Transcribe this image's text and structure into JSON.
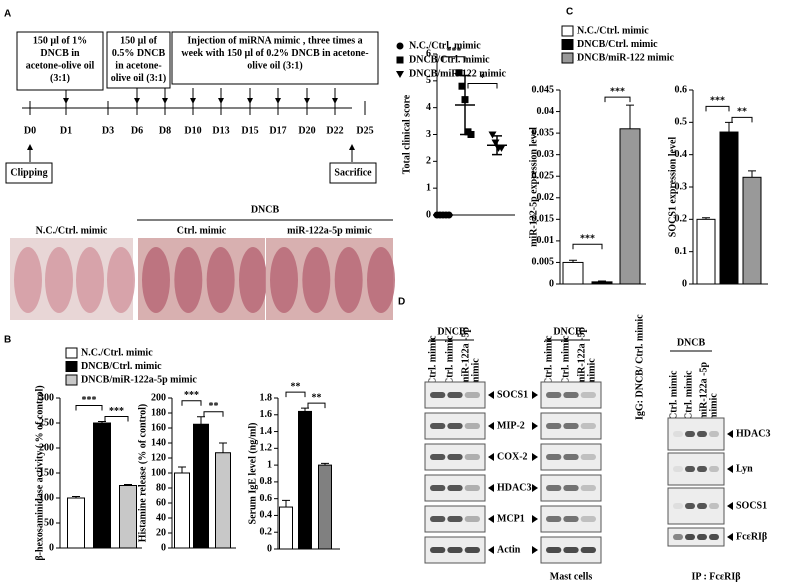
{
  "panel_labels": [
    "A",
    "B",
    "C",
    "D"
  ],
  "timeline": {
    "steps": [
      [
        "150 µl of 1%",
        "DNCB in",
        "acetone-olive oil",
        "(3:1)"
      ],
      [
        "150 µl of",
        "0.5% DNCB",
        "in acetone-",
        "olive oil (3:1)"
      ],
      [
        "Injection of miRNA mimic , three times a",
        "week with 150 µl of 0.2% DNCB in acetone-",
        "olive oil (3:1)"
      ]
    ],
    "days": [
      "D0",
      "D1",
      "D3",
      "D6",
      "D8",
      "D10",
      "D13",
      "D15",
      "D17",
      "D20",
      "D22",
      "D25"
    ],
    "start": "Clipping",
    "end": "Sacrifice"
  },
  "photos": {
    "group": "DNCB",
    "labels": [
      "N.C./Ctrl. mimic",
      "Ctrl. mimic",
      "miR-122a-5p mimic"
    ]
  },
  "legends": {
    "b": [
      {
        "name": "N.C./Ctrl. mimic",
        "color": "#ffffff"
      },
      {
        "name": "DNCB/Ctrl. mimic",
        "color": "#000000"
      },
      {
        "name": "DNCB/miR-122a-5p mimic",
        "color": "#c8c8c8"
      }
    ],
    "c": [
      {
        "name": "N.C./Ctrl. mimic",
        "color": "#ffffff"
      },
      {
        "name": "DNCB/Ctrl. mimic",
        "color": "#000000"
      },
      {
        "name": "DNCB/miR-122 mimic",
        "color": "#999999"
      }
    ]
  },
  "chart_data": [
    {
      "type": "scatter",
      "ylabel": "Total clinical score",
      "ylim": [
        0,
        6
      ],
      "yticks": [
        0,
        1,
        2,
        3,
        4,
        5,
        6
      ],
      "series": [
        {
          "name": "N.C./Ctrl. mimic",
          "marker": "circle",
          "values": [
            0,
            0,
            0,
            0,
            0
          ],
          "mean": 0,
          "error": 0
        },
        {
          "name": "DNCB/Ctrl. mimic",
          "marker": "square",
          "values": [
            5.3,
            4.8,
            4.3,
            3.1,
            3.0
          ],
          "mean": 4.1,
          "error": 1.1
        },
        {
          "name": "DNCB/miR-122 mimic",
          "marker": "triangle",
          "values": [
            3.0,
            2.7,
            2.5,
            2.5
          ],
          "mean": 2.6,
          "error": 0.35
        }
      ],
      "annotations": [
        "***",
        "*"
      ]
    },
    {
      "type": "bar",
      "ylabel": "β-hexosaminidase activity ( % of control)",
      "ylim": [
        0,
        300
      ],
      "yticks": [
        0,
        50,
        100,
        150,
        200,
        250,
        300
      ],
      "values": [
        100,
        250,
        125
      ],
      "errors": [
        3,
        3,
        2
      ],
      "colors": [
        "#ffffff",
        "#000000",
        "#c8c8c8"
      ],
      "annotations": [
        "***",
        "***"
      ]
    },
    {
      "type": "bar",
      "ylabel": "Histamine release (% of control)",
      "ylim": [
        0,
        200
      ],
      "yticks": [
        0,
        20,
        40,
        60,
        80,
        100,
        120,
        140,
        160,
        180,
        200
      ],
      "values": [
        100,
        165,
        127
      ],
      "errors": [
        8,
        10,
        13
      ],
      "colors": [
        "#ffffff",
        "#000000",
        "#c8c8c8"
      ],
      "annotations": [
        "***",
        "**"
      ]
    },
    {
      "type": "bar",
      "ylabel": "Serum IgE level (ng/ml)",
      "ylim": [
        0,
        1.8
      ],
      "yticks": [
        0,
        0.2,
        0.4,
        0.6,
        0.8,
        1,
        1.2,
        1.4,
        1.6,
        1.8
      ],
      "values": [
        0.5,
        1.64,
        1.0
      ],
      "errors": [
        0.08,
        0.04,
        0.02
      ],
      "colors": [
        "#ffffff",
        "#000000",
        "#808080"
      ],
      "annotations": [
        "**",
        "**"
      ]
    },
    {
      "type": "bar",
      "ylabel": "miR-122-5p expression level",
      "ylim": [
        0,
        0.045
      ],
      "yticks": [
        0,
        0.005,
        0.01,
        0.015,
        0.02,
        0.025,
        0.03,
        0.035,
        0.04,
        0.045
      ],
      "values": [
        0.005,
        0.0005,
        0.036
      ],
      "errors": [
        0.0005,
        0.0002,
        0.0055
      ],
      "colors": [
        "#ffffff",
        "#000000",
        "#999999"
      ],
      "annotations": [
        "***",
        "***"
      ]
    },
    {
      "type": "bar",
      "ylabel": "SOCS1 expression level",
      "ylim": [
        0,
        0.6
      ],
      "yticks": [
        0,
        0.1,
        0.2,
        0.3,
        0.4,
        0.5,
        0.6
      ],
      "values": [
        0.2,
        0.47,
        0.33
      ],
      "errors": [
        0.005,
        0.03,
        0.02
      ],
      "colors": [
        "#ffffff",
        "#000000",
        "#999999"
      ],
      "annotations": [
        "***",
        "**"
      ]
    }
  ],
  "blots": [
    {
      "header": "DNCB",
      "lanes": [
        [
          "Ctrl. mimic"
        ],
        [
          "Ctrl. mimic"
        ],
        [
          "miR-122a -5p",
          "mimic"
        ]
      ],
      "bands": [
        "SOCS1",
        "MIP-2",
        "COX-2",
        "HDAC3",
        "MCP1",
        "Actin"
      ]
    },
    {
      "header": "DNCB",
      "lanes": [
        [
          "Ctrl. mimic"
        ],
        [
          "Ctrl. mimic"
        ],
        [
          "miR-122a -5p",
          "mimic"
        ]
      ],
      "footer": "Mast cells"
    },
    {
      "header": "DNCB",
      "lanes": [
        [
          "IgG: DNCB/ Ctrl. mimic"
        ],
        [
          "Ctrl. mimic"
        ],
        [
          "Ctrl. mimic"
        ],
        [
          "miR-122a -5p",
          "mimic"
        ]
      ],
      "bands": [
        "HDAC3",
        "Lyn",
        "SOCS1",
        "FcεRIβ"
      ],
      "footer": "IP : FcεRIβ"
    }
  ]
}
